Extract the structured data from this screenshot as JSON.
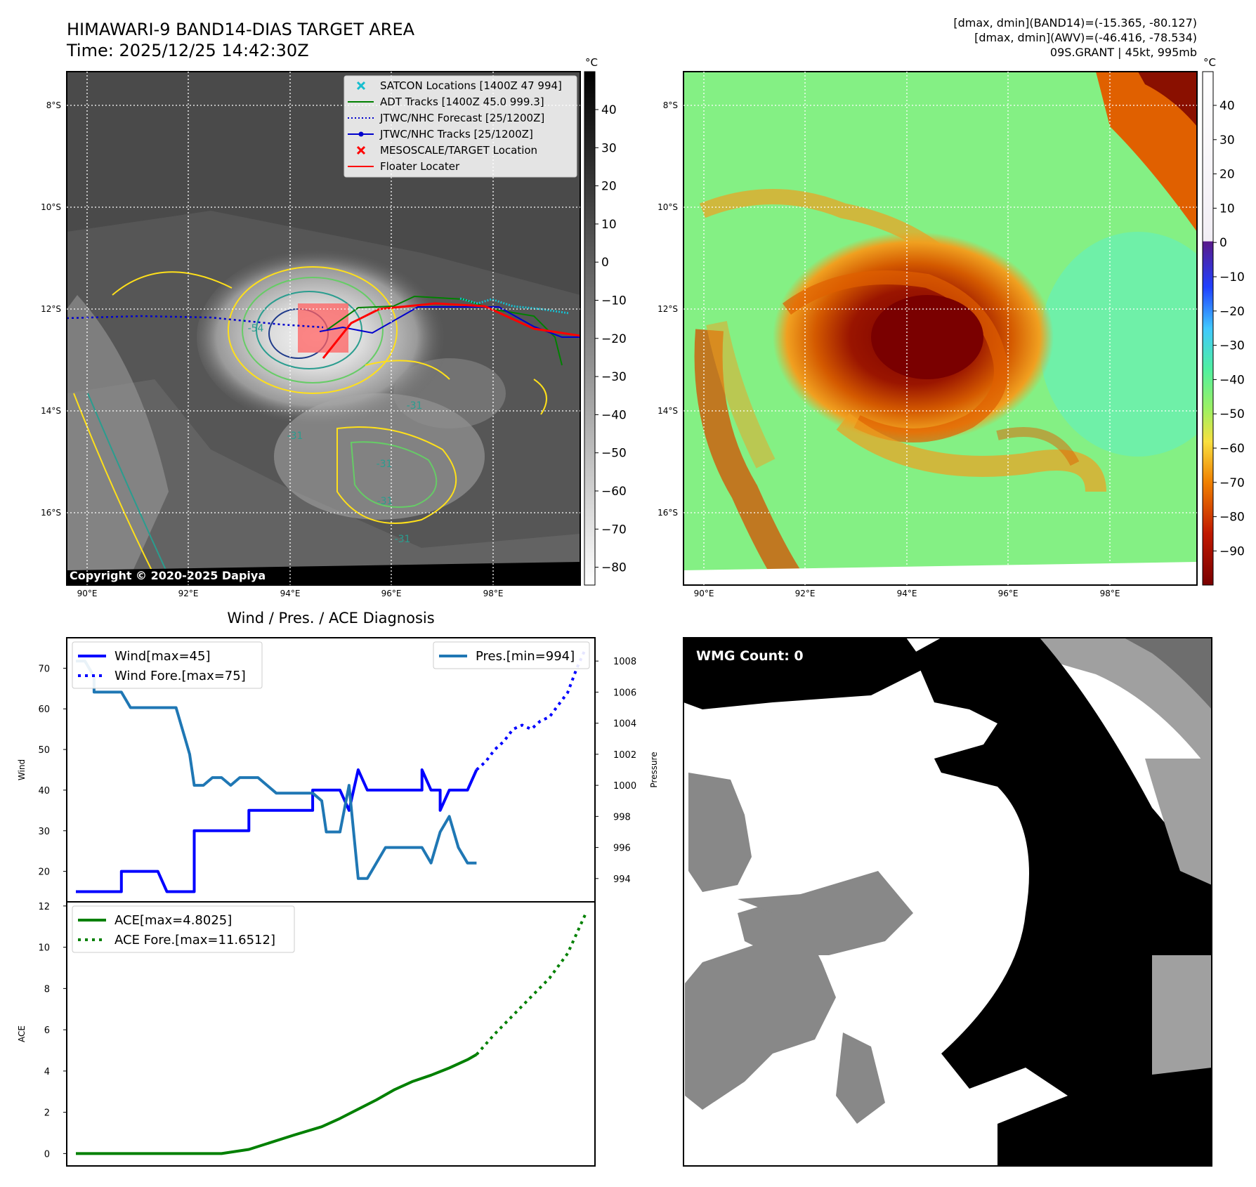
{
  "header": {
    "title_line1": "HIMAWARI-9 BAND14-DIAS TARGET AREA",
    "title_line2": "Time: 2025/12/25 14:42:30Z",
    "stats_line1": "[dmax, dmin](BAND14)=(-15.365, -80.127)",
    "stats_line2": "[dmax, dmin](AWV)=(-46.416, -78.534)",
    "stats_line3": "09S.GRANT | 45kt, 995mb"
  },
  "colors": {
    "wind": "#0000ff",
    "pressure": "#1f77b4",
    "ace": "#008000",
    "satcon": "#17becf",
    "adt": "#008000",
    "jtwc": "#0000cc",
    "target": "#ff0000",
    "floater": "#ff0000",
    "contour_yellow": "#ffe01a",
    "contour_green": "#66cc66",
    "contour_teal": "#2a9d8f"
  },
  "map_left": {
    "lon_ticks": [
      "90°E",
      "92°E",
      "94°E",
      "96°E",
      "98°E"
    ],
    "lat_ticks": [
      "8°S",
      "10°S",
      "12°S",
      "14°S",
      "16°S"
    ],
    "colorbar_unit": "°C",
    "colorbar_ticks": [
      "40",
      "30",
      "20",
      "10",
      "0",
      "−10",
      "−20",
      "−30",
      "−40",
      "−50",
      "−60",
      "−70",
      "−80"
    ],
    "copyright": "Copyright © 2020-2025 Dapiya",
    "legend": [
      {
        "label": "SATCON Locations [1400Z 47 994]",
        "icon": "cross-icon"
      },
      {
        "label": "ADT Tracks [1400Z 45.0 999.3]",
        "icon": "line-icon"
      },
      {
        "label": "JTWC/NHC Forecast [25/1200Z]",
        "icon": "dotted-line-icon"
      },
      {
        "label": "JTWC/NHC Tracks [25/1200Z]",
        "icon": "line-dot-icon"
      },
      {
        "label": "MESOSCALE/TARGET Location",
        "icon": "x-icon"
      },
      {
        "label": "Floater Locater",
        "icon": "line-icon"
      }
    ],
    "contour_labels": [
      "-54",
      "-31",
      "-31",
      "-31",
      "-31",
      "-31"
    ]
  },
  "map_right": {
    "lon_ticks": [
      "90°E",
      "92°E",
      "94°E",
      "96°E",
      "98°E"
    ],
    "lat_ticks": [
      "8°S",
      "10°S",
      "12°S",
      "14°S",
      "16°S"
    ],
    "colorbar_unit": "°C",
    "colorbar_ticks": [
      "40",
      "30",
      "20",
      "10",
      "0",
      "−10",
      "−20",
      "−30",
      "−40",
      "−50",
      "−60",
      "−70",
      "−80",
      "−90"
    ]
  },
  "wmg": {
    "label": "WMG Count: 0"
  },
  "chart_data": [
    {
      "type": "line",
      "title": "Wind / Pres. / ACE Diagnosis",
      "ylabel": "Wind",
      "y2label": "Pressure",
      "ylim": [
        12.5,
        77.5
      ],
      "y2lim": [
        992.5,
        1009.5
      ],
      "xlim": [
        0,
        58
      ],
      "yticks": [
        20,
        30,
        40,
        50,
        60,
        70
      ],
      "y2ticks": [
        994,
        996,
        998,
        1000,
        1002,
        1004,
        1006,
        1008
      ],
      "legend_left": [
        "Wind[max=45]",
        "Wind Fore.[max=75]"
      ],
      "legend_right": [
        "Pres.[min=994]"
      ],
      "series": [
        {
          "name": "Wind[max=45]",
          "axis": "left",
          "style": "solid",
          "x": [
            1,
            2,
            3,
            4,
            5,
            6,
            6,
            7,
            8,
            9,
            10,
            11,
            11,
            12,
            13,
            14,
            14,
            15,
            16,
            17,
            18,
            19,
            20,
            20,
            21,
            22,
            23,
            24,
            25,
            26,
            27,
            27,
            28,
            29,
            30,
            31,
            31,
            32,
            32,
            33,
            34,
            35,
            36,
            37,
            38,
            39,
            39,
            40,
            41,
            41,
            42,
            43,
            44,
            45
          ],
          "y": [
            15,
            15,
            15,
            15,
            15,
            15,
            20,
            20,
            20,
            20,
            20,
            15,
            15,
            15,
            15,
            15,
            30,
            30,
            30,
            30,
            30,
            30,
            30,
            35,
            35,
            35,
            35,
            35,
            35,
            35,
            35,
            40,
            40,
            40,
            40,
            35,
            35,
            45,
            45,
            40,
            40,
            40,
            40,
            40,
            40,
            40,
            45,
            40,
            40,
            35,
            40,
            40,
            40,
            45
          ]
        },
        {
          "name": "Wind Fore.[max=75]",
          "axis": "left",
          "style": "dotted",
          "x": [
            45,
            46,
            47,
            48,
            49,
            50,
            51,
            52,
            53,
            54,
            55,
            56,
            57
          ],
          "y": [
            45,
            47,
            50,
            52,
            55,
            56,
            55,
            57,
            58,
            61,
            64,
            70,
            75
          ]
        },
        {
          "name": "Pres.[min=994]",
          "axis": "right",
          "style": "solid",
          "x": [
            1,
            2,
            3,
            3,
            4,
            5,
            6,
            7,
            8,
            9,
            10,
            11,
            12,
            13,
            13.5,
            14,
            15,
            16,
            17,
            18,
            19,
            20,
            21,
            22,
            23,
            24,
            25,
            26,
            27,
            28,
            28.5,
            29,
            30,
            31,
            32,
            33,
            34,
            35,
            36,
            37,
            37.5,
            38,
            39,
            40,
            41,
            42,
            43,
            44,
            45
          ],
          "y": [
            1008,
            1008,
            1007,
            1006,
            1006,
            1006,
            1006,
            1005,
            1005,
            1005,
            1005,
            1005,
            1005,
            1003,
            1002,
            1000,
            1000,
            1000.5,
            1000.5,
            1000,
            1000.5,
            1000.5,
            1000.5,
            1000,
            999.5,
            999.5,
            999.5,
            999.5,
            999.5,
            999,
            997,
            997,
            997,
            1000,
            994,
            994,
            995,
            996,
            996,
            996,
            996,
            996,
            996,
            995,
            997,
            998,
            996,
            995,
            995
          ]
        }
      ]
    },
    {
      "type": "line",
      "ylabel": "ACE",
      "ylim": [
        -0.6,
        12.2
      ],
      "xlim": [
        0,
        58
      ],
      "yticks": [
        0,
        2,
        4,
        6,
        8,
        10,
        12
      ],
      "legend": [
        "ACE[max=4.8025]",
        "ACE Fore.[max=11.6512]"
      ],
      "series": [
        {
          "name": "ACE[max=4.8025]",
          "style": "solid",
          "x": [
            1,
            5,
            10,
            15,
            17,
            20,
            25,
            28,
            30,
            32,
            34,
            36,
            38,
            40,
            42,
            44,
            45
          ],
          "y": [
            0,
            0,
            0,
            0,
            0,
            0.2,
            0.9,
            1.3,
            1.7,
            2.15,
            2.6,
            3.1,
            3.5,
            3.8,
            4.15,
            4.55,
            4.8
          ]
        },
        {
          "name": "ACE Fore.[max=11.6512]",
          "style": "dotted",
          "x": [
            45,
            47,
            49,
            51,
            53,
            55,
            57
          ],
          "y": [
            4.8,
            5.8,
            6.7,
            7.6,
            8.5,
            9.7,
            11.65
          ]
        }
      ]
    }
  ]
}
